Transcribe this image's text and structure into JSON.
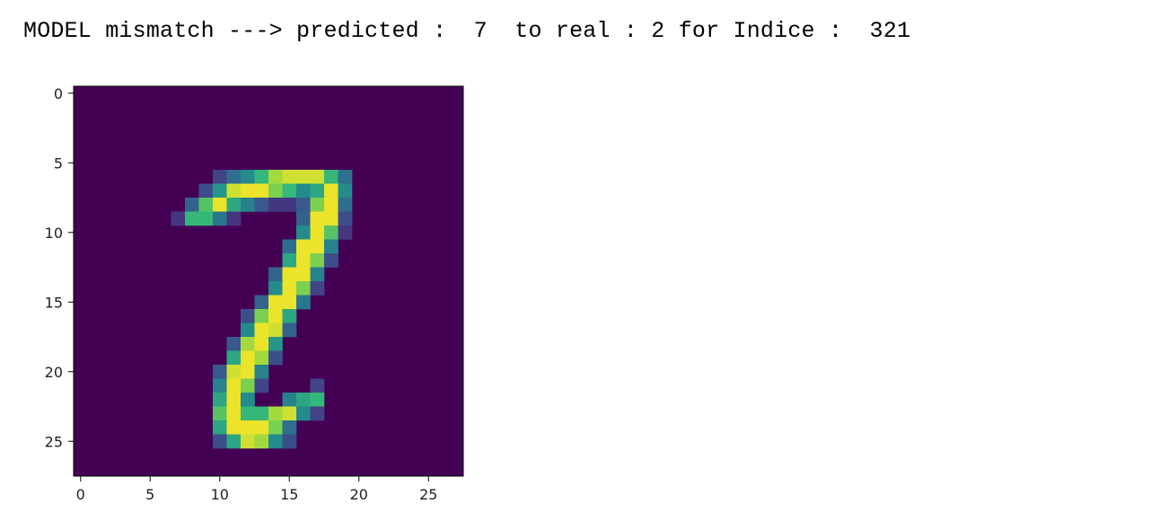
{
  "cell_output": {
    "text": "MODEL mismatch ---> predicted :  7  to real : 2 for Indice :  321"
  },
  "chart_data": {
    "type": "heatmap",
    "title": "",
    "xlabel": "",
    "ylabel": "",
    "colormap": "viridis",
    "xlim": [
      -0.5,
      27.5
    ],
    "ylim": [
      27.5,
      -0.5
    ],
    "xticks": [
      0,
      5,
      10,
      15,
      20,
      25
    ],
    "yticks": [
      0,
      5,
      10,
      15,
      20,
      25
    ],
    "shape": [
      28,
      28
    ],
    "value_range": [
      0,
      1
    ],
    "background": 0,
    "pixels": [
      [
        6,
        10,
        0.25
      ],
      [
        6,
        11,
        0.45
      ],
      [
        6,
        12,
        0.6
      ],
      [
        6,
        13,
        0.75
      ],
      [
        6,
        14,
        0.9
      ],
      [
        6,
        15,
        0.95
      ],
      [
        6,
        16,
        0.95
      ],
      [
        6,
        17,
        0.95
      ],
      [
        6,
        18,
        0.75
      ],
      [
        6,
        19,
        0.45
      ],
      [
        7,
        9,
        0.3
      ],
      [
        7,
        10,
        0.65
      ],
      [
        7,
        11,
        0.95
      ],
      [
        7,
        12,
        0.98
      ],
      [
        7,
        13,
        0.98
      ],
      [
        7,
        14,
        0.85
      ],
      [
        7,
        15,
        0.75
      ],
      [
        7,
        16,
        0.6
      ],
      [
        7,
        17,
        0.7
      ],
      [
        7,
        18,
        0.98
      ],
      [
        7,
        19,
        0.6
      ],
      [
        8,
        8,
        0.4
      ],
      [
        8,
        9,
        0.8
      ],
      [
        8,
        10,
        0.98
      ],
      [
        8,
        11,
        0.7
      ],
      [
        8,
        12,
        0.55
      ],
      [
        8,
        13,
        0.35
      ],
      [
        8,
        14,
        0.2
      ],
      [
        8,
        15,
        0.2
      ],
      [
        8,
        16,
        0.35
      ],
      [
        8,
        17,
        0.85
      ],
      [
        8,
        18,
        0.98
      ],
      [
        8,
        19,
        0.45
      ],
      [
        9,
        7,
        0.2
      ],
      [
        9,
        8,
        0.75
      ],
      [
        9,
        9,
        0.75
      ],
      [
        9,
        10,
        0.5
      ],
      [
        9,
        11,
        0.2
      ],
      [
        9,
        16,
        0.4
      ],
      [
        9,
        17,
        0.98
      ],
      [
        9,
        18,
        0.98
      ],
      [
        9,
        19,
        0.3
      ],
      [
        10,
        16,
        0.6
      ],
      [
        10,
        17,
        0.98
      ],
      [
        10,
        18,
        0.8
      ],
      [
        10,
        19,
        0.2
      ],
      [
        11,
        15,
        0.45
      ],
      [
        11,
        16,
        0.98
      ],
      [
        11,
        17,
        0.98
      ],
      [
        11,
        18,
        0.55
      ],
      [
        12,
        15,
        0.7
      ],
      [
        12,
        16,
        0.98
      ],
      [
        12,
        17,
        0.85
      ],
      [
        12,
        18,
        0.3
      ],
      [
        13,
        14,
        0.4
      ],
      [
        13,
        15,
        0.98
      ],
      [
        13,
        16,
        0.98
      ],
      [
        13,
        17,
        0.55
      ],
      [
        14,
        14,
        0.6
      ],
      [
        14,
        15,
        0.98
      ],
      [
        14,
        16,
        0.85
      ],
      [
        14,
        17,
        0.25
      ],
      [
        15,
        13,
        0.4
      ],
      [
        15,
        14,
        0.98
      ],
      [
        15,
        15,
        0.98
      ],
      [
        15,
        16,
        0.5
      ],
      [
        16,
        12,
        0.3
      ],
      [
        16,
        13,
        0.85
      ],
      [
        16,
        14,
        0.98
      ],
      [
        16,
        15,
        0.7
      ],
      [
        17,
        12,
        0.6
      ],
      [
        17,
        13,
        0.98
      ],
      [
        17,
        14,
        0.95
      ],
      [
        17,
        15,
        0.4
      ],
      [
        18,
        11,
        0.35
      ],
      [
        18,
        12,
        0.9
      ],
      [
        18,
        13,
        0.98
      ],
      [
        18,
        14,
        0.65
      ],
      [
        19,
        11,
        0.7
      ],
      [
        19,
        12,
        0.98
      ],
      [
        19,
        13,
        0.9
      ],
      [
        19,
        14,
        0.3
      ],
      [
        20,
        10,
        0.35
      ],
      [
        20,
        11,
        0.95
      ],
      [
        20,
        12,
        0.98
      ],
      [
        20,
        13,
        0.55
      ],
      [
        21,
        10,
        0.55
      ],
      [
        21,
        11,
        0.98
      ],
      [
        21,
        12,
        0.85
      ],
      [
        21,
        13,
        0.25
      ],
      [
        21,
        17,
        0.25
      ],
      [
        22,
        10,
        0.7
      ],
      [
        22,
        11,
        0.98
      ],
      [
        22,
        12,
        0.6
      ],
      [
        22,
        15,
        0.55
      ],
      [
        22,
        16,
        0.7
      ],
      [
        22,
        17,
        0.75
      ],
      [
        23,
        10,
        0.8
      ],
      [
        23,
        11,
        0.98
      ],
      [
        23,
        12,
        0.75
      ],
      [
        23,
        13,
        0.75
      ],
      [
        23,
        14,
        0.9
      ],
      [
        23,
        15,
        0.95
      ],
      [
        23,
        16,
        0.6
      ],
      [
        23,
        17,
        0.25
      ],
      [
        24,
        10,
        0.7
      ],
      [
        24,
        11,
        0.98
      ],
      [
        24,
        12,
        0.98
      ],
      [
        24,
        13,
        0.98
      ],
      [
        24,
        14,
        0.85
      ],
      [
        24,
        15,
        0.45
      ],
      [
        25,
        10,
        0.3
      ],
      [
        25,
        11,
        0.7
      ],
      [
        25,
        12,
        0.95
      ],
      [
        25,
        13,
        0.9
      ],
      [
        25,
        14,
        0.6
      ],
      [
        25,
        15,
        0.3
      ]
    ]
  }
}
